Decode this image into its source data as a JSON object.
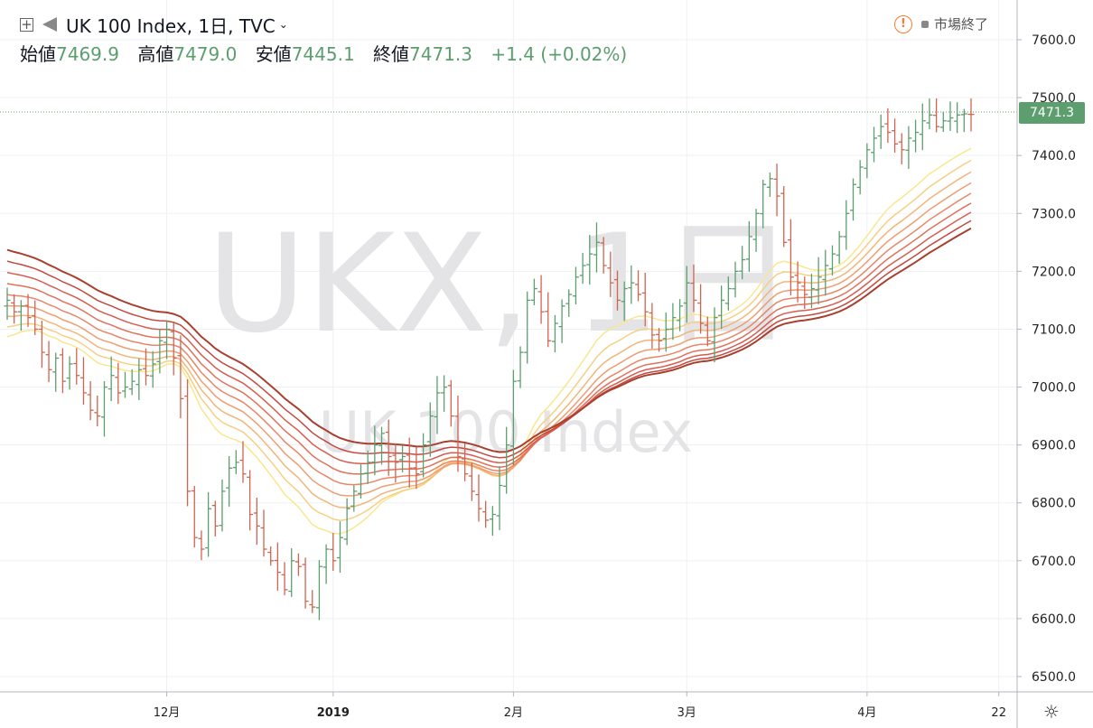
{
  "header": {
    "symbol_title": "UK 100 Index, 1日, TVC",
    "ohlc": [
      {
        "label": "始値",
        "value": "7469.9"
      },
      {
        "label": "高値",
        "value": "7479.0"
      },
      {
        "label": "安値",
        "value": "7445.1"
      },
      {
        "label": "終値",
        "value": "7471.3"
      }
    ],
    "change": "+1.4 (+0.02%)"
  },
  "status": {
    "text": "市場終了"
  },
  "watermark": {
    "main": "UKX, 1日",
    "sub": "UK 100 Index"
  },
  "last_price_label": "7471.3",
  "colors": {
    "up": "#5c9e6e",
    "down": "#d1644f",
    "ribbon": [
      "#f9e78f",
      "#f6cf83",
      "#f2b579",
      "#ee9d70",
      "#e88666",
      "#e0715b",
      "#d55d4f",
      "#c34a40",
      "#a9402f"
    ]
  },
  "chart_data": {
    "type": "ohlc",
    "y_axis": {
      "ylim": [
        6480,
        7640
      ],
      "ticks": [
        "7600.0",
        "7500.0",
        "7400.0",
        "7300.0",
        "7200.0",
        "7100.0",
        "7000.0",
        "6900.0",
        "6800.0",
        "6700.0",
        "6600.0",
        "6500.0"
      ]
    },
    "x_axis": {
      "ticks": [
        {
          "label": "12月",
          "index": 23
        },
        {
          "label": "2019",
          "index": 47
        },
        {
          "label": "2月",
          "index": 73
        },
        {
          "label": "3月",
          "index": 98
        },
        {
          "label": "4月",
          "index": 124
        },
        {
          "label": "22",
          "index": 143
        }
      ],
      "bars": 140
    },
    "last_price": 7471.3,
    "bars_closes": [
      7150,
      7130,
      7140,
      7120,
      7100,
      7060,
      7030,
      7050,
      7010,
      7040,
      7020,
      6990,
      6960,
      6950,
      7000,
      7020,
      6990,
      7000,
      7010,
      7030,
      7020,
      7040,
      7080,
      7100,
      7050,
      6980,
      6820,
      6740,
      6720,
      6790,
      6760,
      6820,
      6860,
      6870,
      6850,
      6780,
      6760,
      6720,
      6700,
      6680,
      6650,
      6700,
      6690,
      6630,
      6620,
      6690,
      6720,
      6700,
      6740,
      6790,
      6820,
      6850,
      6870,
      6900,
      6920,
      6880,
      6870,
      6880,
      6860,
      6850,
      6900,
      6950,
      6990,
      7000,
      6950,
      6880,
      6850,
      6820,
      6790,
      6770,
      6780,
      6830,
      6900,
      7010,
      7060,
      7150,
      7170,
      7130,
      7080,
      7110,
      7140,
      7160,
      7190,
      7210,
      7230,
      7250,
      7210,
      7180,
      7150,
      7170,
      7180,
      7160,
      7130,
      7090,
      7080,
      7100,
      7120,
      7140,
      7180,
      7150,
      7110,
      7080,
      7120,
      7150,
      7170,
      7200,
      7220,
      7260,
      7300,
      7350,
      7360,
      7330,
      7250,
      7190,
      7180,
      7160,
      7170,
      7190,
      7210,
      7230,
      7260,
      7300,
      7350,
      7380,
      7410,
      7430,
      7450,
      7440,
      7420,
      7410,
      7430,
      7440,
      7460,
      7470,
      7450,
      7460,
      7465,
      7470,
      7472,
      7471
    ],
    "ribbon_periods": [
      20,
      25,
      30,
      35,
      40,
      45,
      50,
      55,
      60
    ]
  }
}
